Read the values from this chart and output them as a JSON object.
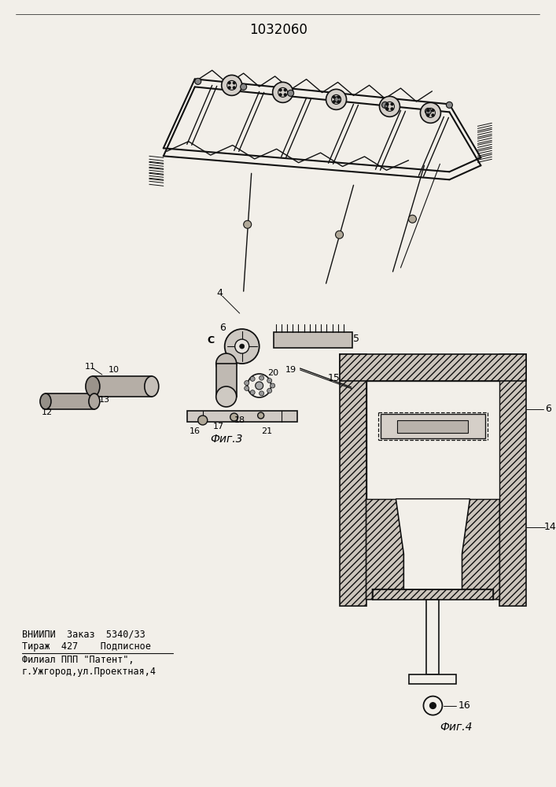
{
  "patent_number": "1032060",
  "fig3_label": "Фиг.3",
  "fig4_label": "Фиг.4",
  "footer_line1": "ВНИИПИ  Заказ  5340/33",
  "footer_line2": "Тираж  427    Подписное",
  "footer_line3": "Филиал ППП \"Патент\",",
  "footer_line4": "г.Ужгород,ул.Проектная,4",
  "bg_color": "#f2efe9",
  "line_color": "#111111"
}
